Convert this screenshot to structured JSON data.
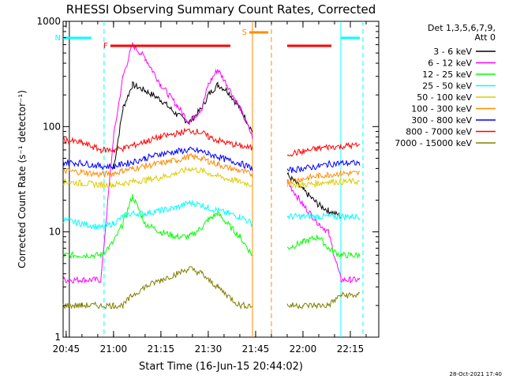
{
  "chart_data": {
    "type": "line",
    "title": "RHESSI Observing Summary Count Rates, Corrected",
    "xlabel": "Start Time (16-Jun-15 20:44:02)",
    "ylabel": "Corrected Count Rate (s⁻¹ detector⁻¹)",
    "yscale": "log",
    "ylim": [
      1,
      1000
    ],
    "xlim": [
      "20:44:02",
      "22:24:00"
    ],
    "x_ticks": [
      "20:45",
      "21:00",
      "21:15",
      "21:30",
      "21:45",
      "22:00",
      "22:15"
    ],
    "y_ticks": [
      "1",
      "10",
      "100",
      "1000"
    ],
    "footer": "28-Oct-2021 17:40",
    "legend": {
      "position": "right",
      "header": [
        "Det 1,3,5,6,7,9,",
        "Att 0"
      ]
    },
    "flags": {
      "F": {
        "label": "F",
        "color": "#ff0000",
        "segments": [
          [
            "20:59",
            "21:37"
          ],
          [
            "21:55",
            "22:09"
          ]
        ]
      },
      "N": {
        "label": "N",
        "color": "#00ffff",
        "segments": [
          [
            "20:44:02",
            "20:53"
          ],
          [
            "22:12",
            "22:18"
          ]
        ]
      },
      "S": {
        "label": "S",
        "color": "#ff8c00",
        "segments": [
          [
            "21:43",
            "21:49"
          ]
        ]
      }
    },
    "vertical_markers": [
      {
        "time": "20:46",
        "color": "#000000",
        "style": "solid"
      },
      {
        "time": "20:57",
        "color": "#00ffff",
        "style": "dashed"
      },
      {
        "time": "21:44",
        "color": "#ff8c00",
        "style": "solid"
      },
      {
        "time": "21:50",
        "color": "#ff8c00",
        "style": "dashed"
      },
      {
        "time": "22:12",
        "color": "#00ffff",
        "style": "solid"
      },
      {
        "time": "22:19",
        "color": "#00ffff",
        "style": "dashed"
      }
    ],
    "gaps": [
      [
        "21:44",
        "21:50"
      ]
    ],
    "x": [
      "20:44",
      "20:50",
      "20:56",
      "21:00",
      "21:03",
      "21:06",
      "21:10",
      "21:15",
      "21:20",
      "21:24",
      "21:28",
      "21:30",
      "21:33",
      "21:36",
      "21:40",
      "21:44",
      "21:50",
      "21:55",
      "22:00",
      "22:05",
      "22:08",
      "22:12",
      "22:15",
      "22:18",
      "22:24"
    ],
    "series": [
      {
        "name": "3 - 6 keV",
        "color": "#000000",
        "values": [
          null,
          null,
          null,
          40,
          150,
          250,
          220,
          180,
          130,
          110,
          150,
          200,
          250,
          220,
          150,
          90,
          null,
          35,
          25,
          18,
          16,
          14,
          null,
          null,
          null
        ]
      },
      {
        "name": "6 - 12 keV",
        "color": "#ff00ff",
        "values": [
          3.5,
          3.5,
          3.5,
          80,
          300,
          600,
          450,
          250,
          160,
          110,
          150,
          250,
          350,
          250,
          150,
          80,
          null,
          30,
          18,
          12,
          10,
          3.5,
          3.5,
          3.5,
          null
        ]
      },
      {
        "name": "12 - 25 keV",
        "color": "#00ff00",
        "values": [
          6,
          6,
          6,
          8,
          12,
          22,
          12,
          10,
          9,
          9,
          11,
          13,
          15,
          12,
          9,
          6,
          null,
          7,
          8,
          9,
          7,
          6,
          6,
          6,
          null
        ]
      },
      {
        "name": "25 - 50 keV",
        "color": "#00ffff",
        "values": [
          13,
          12,
          11,
          12,
          14,
          15,
          15,
          16,
          17,
          19,
          18,
          17,
          16,
          15,
          14,
          12,
          null,
          14,
          14,
          14,
          14,
          14,
          14,
          14,
          null
        ]
      },
      {
        "name": "50 - 100 keV",
        "color": "#ddcc00",
        "values": [
          30,
          29,
          28,
          28,
          29,
          30,
          31,
          33,
          36,
          40,
          38,
          36,
          34,
          32,
          30,
          28,
          null,
          28,
          28,
          29,
          30,
          30,
          30,
          30,
          null
        ]
      },
      {
        "name": "100 - 300 keV",
        "color": "#ff8c00",
        "values": [
          38,
          37,
          35,
          36,
          38,
          40,
          42,
          45,
          48,
          52,
          50,
          47,
          44,
          41,
          38,
          35,
          null,
          30,
          32,
          34,
          35,
          36,
          36,
          36,
          null
        ]
      },
      {
        "name": "300 - 800 keV",
        "color": "#0000ff",
        "values": [
          46,
          45,
          42,
          42,
          44,
          46,
          50,
          55,
          58,
          60,
          58,
          55,
          52,
          48,
          45,
          40,
          null,
          38,
          40,
          42,
          44,
          45,
          45,
          45,
          null
        ]
      },
      {
        "name": "800 - 7000 keV",
        "color": "#ff0000",
        "values": [
          75,
          70,
          60,
          60,
          62,
          66,
          72,
          80,
          86,
          92,
          88,
          80,
          74,
          70,
          66,
          62,
          null,
          55,
          58,
          62,
          64,
          65,
          66,
          66,
          null
        ]
      },
      {
        "name": "7000 - 15000 keV",
        "color": "#808000",
        "values": [
          2,
          2,
          2,
          2,
          2,
          2.5,
          3,
          3.5,
          4,
          4.5,
          4,
          3.5,
          3,
          2.5,
          2,
          2,
          null,
          2,
          2,
          2,
          2,
          2.5,
          2.5,
          2.5,
          null
        ]
      }
    ]
  }
}
